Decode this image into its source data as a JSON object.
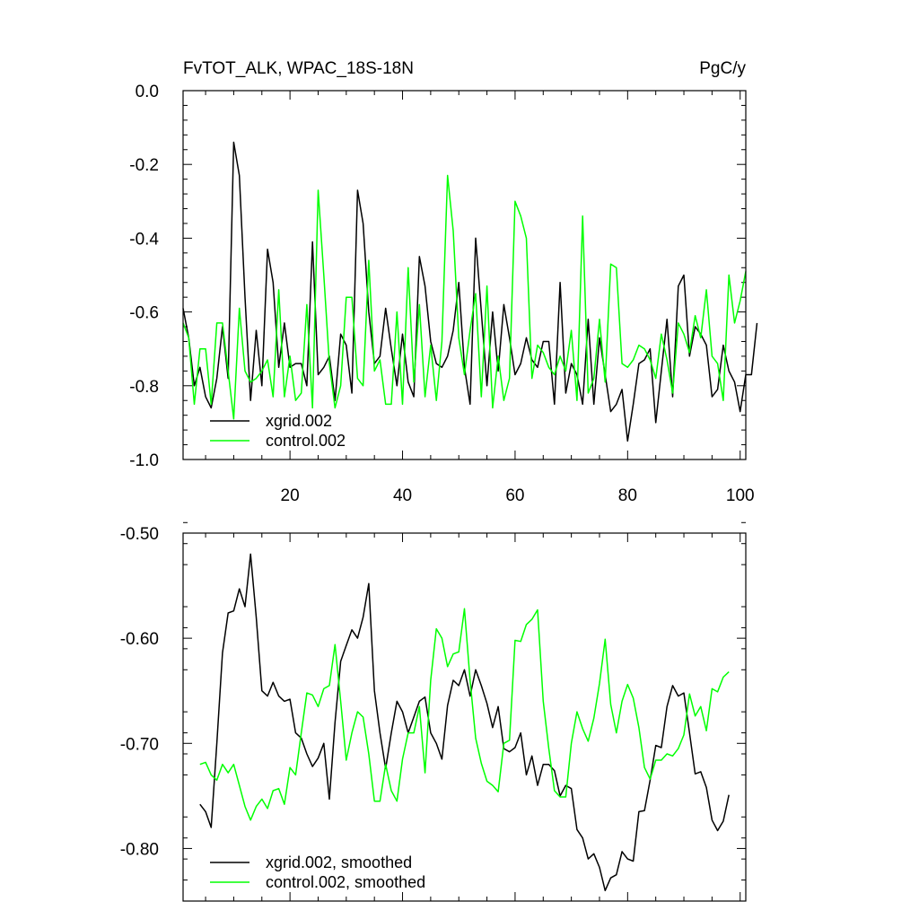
{
  "chart_data": [
    {
      "type": "line",
      "title_left": "FvTOT_ALK, WPAC_18S-18N",
      "title_right": "PgC/y",
      "xlabel": "",
      "ylabel": "",
      "xlim": [
        1,
        101
      ],
      "ylim": [
        -1.0,
        0.0
      ],
      "x_ticks": [
        20,
        40,
        60,
        80,
        100
      ],
      "x_tick_labels": [
        "20",
        "40",
        "60",
        "80",
        "100"
      ],
      "y_ticks": [
        0.0,
        -0.2,
        -0.4,
        -0.6,
        -0.8,
        -1.0
      ],
      "y_tick_labels": [
        "0.0",
        "-0.2",
        "-0.4",
        "-0.6",
        "-0.8",
        "-1.0"
      ],
      "grid": false,
      "legend_position": "bottom-left",
      "x_start": 1,
      "series": [
        {
          "name": "xgrid.002",
          "color": "#000000",
          "values": [
            -0.59,
            -0.67,
            -0.8,
            -0.75,
            -0.83,
            -0.86,
            -0.78,
            -0.64,
            -0.78,
            -0.14,
            -0.23,
            -0.56,
            -0.84,
            -0.65,
            -0.8,
            -0.43,
            -0.52,
            -0.75,
            -0.63,
            -0.75,
            -0.74,
            -0.74,
            -0.8,
            -0.41,
            -0.77,
            -0.75,
            -0.72,
            -0.84,
            -0.66,
            -0.69,
            -0.82,
            -0.27,
            -0.36,
            -0.6,
            -0.74,
            -0.72,
            -0.59,
            -0.7,
            -0.8,
            -0.66,
            -0.79,
            -0.83,
            -0.45,
            -0.53,
            -0.68,
            -0.74,
            -0.75,
            -0.72,
            -0.65,
            -0.52,
            -0.75,
            -0.85,
            -0.4,
            -0.6,
            -0.8,
            -0.6,
            -0.76,
            -0.58,
            -0.67,
            -0.77,
            -0.74,
            -0.67,
            -0.73,
            -0.75,
            -0.68,
            -0.68,
            -0.85,
            -0.52,
            -0.82,
            -0.74,
            -0.77,
            -0.85,
            -0.62,
            -0.85,
            -0.67,
            -0.77,
            -0.87,
            -0.85,
            -0.81,
            -0.95,
            -0.85,
            -0.74,
            -0.73,
            -0.7,
            -0.9,
            -0.76,
            -0.62,
            -0.83,
            -0.53,
            -0.5,
            -0.72,
            -0.64,
            -0.66,
            -0.69,
            -0.83,
            -0.81,
            -0.69,
            -0.76,
            -0.79,
            -0.87,
            -0.77,
            -0.77,
            -0.63
          ]
        },
        {
          "name": "control.002",
          "color": "#00ff00",
          "values": [
            -0.63,
            -0.67,
            -0.85,
            -0.7,
            -0.7,
            -0.85,
            -0.63,
            -0.63,
            -0.76,
            -0.89,
            -0.59,
            -0.76,
            -0.79,
            -0.78,
            -0.76,
            -0.73,
            -0.83,
            -0.54,
            -0.83,
            -0.72,
            -0.84,
            -0.82,
            -0.58,
            -0.86,
            -0.27,
            -0.5,
            -0.74,
            -0.86,
            -0.8,
            -0.56,
            -0.56,
            -0.78,
            -0.8,
            -0.46,
            -0.76,
            -0.73,
            -0.85,
            -0.85,
            -0.6,
            -0.85,
            -0.48,
            -0.79,
            -0.58,
            -0.83,
            -0.69,
            -0.84,
            -0.68,
            -0.23,
            -0.38,
            -0.67,
            -0.77,
            -0.65,
            -0.55,
            -0.83,
            -0.53,
            -0.86,
            -0.72,
            -0.84,
            -0.78,
            -0.3,
            -0.34,
            -0.4,
            -0.78,
            -0.69,
            -0.71,
            -0.75,
            -0.77,
            -0.72,
            -0.76,
            -0.65,
            -0.84,
            -0.34,
            -0.82,
            -0.78,
            -0.62,
            -0.79,
            -0.47,
            -0.48,
            -0.74,
            -0.75,
            -0.73,
            -0.69,
            -0.7,
            -0.73,
            -0.78,
            -0.66,
            -0.73,
            -0.82,
            -0.63,
            -0.66,
            -0.71,
            -0.61,
            -0.67,
            -0.54,
            -0.72,
            -0.74,
            -0.84,
            -0.5,
            -0.63,
            -0.57,
            -0.49
          ]
        }
      ]
    },
    {
      "type": "line",
      "xlabel": "",
      "ylabel": "",
      "xlim": [
        1,
        101
      ],
      "ylim": [
        -0.85,
        -0.5
      ],
      "x_ticks": [
        20,
        40,
        60,
        80,
        100
      ],
      "y_ticks": [
        -0.5,
        -0.6,
        -0.7,
        -0.8
      ],
      "y_tick_labels": [
        "-0.50",
        "-0.60",
        "-0.70",
        "-0.80"
      ],
      "grid": false,
      "legend_position": "bottom-left",
      "x_start": 4,
      "series": [
        {
          "name": "xgrid.002, smoothed",
          "color": "#000000",
          "values": [
            -0.758,
            -0.765,
            -0.78,
            -0.7,
            -0.614,
            -0.576,
            -0.574,
            -0.553,
            -0.57,
            -0.52,
            -0.58,
            -0.65,
            -0.655,
            -0.642,
            -0.655,
            -0.66,
            -0.658,
            -0.69,
            -0.695,
            -0.71,
            -0.722,
            -0.714,
            -0.7,
            -0.753,
            -0.68,
            -0.622,
            -0.607,
            -0.592,
            -0.6,
            -0.58,
            -0.548,
            -0.65,
            -0.69,
            -0.724,
            -0.69,
            -0.66,
            -0.67,
            -0.69,
            -0.675,
            -0.66,
            -0.656,
            -0.69,
            -0.7,
            -0.715,
            -0.664,
            -0.64,
            -0.645,
            -0.63,
            -0.655,
            -0.63,
            -0.645,
            -0.662,
            -0.685,
            -0.665,
            -0.705,
            -0.708,
            -0.704,
            -0.69,
            -0.73,
            -0.712,
            -0.74,
            -0.72,
            -0.72,
            -0.726,
            -0.75,
            -0.74,
            -0.743,
            -0.782,
            -0.79,
            -0.81,
            -0.805,
            -0.818,
            -0.84,
            -0.828,
            -0.825,
            -0.803,
            -0.81,
            -0.812,
            -0.765,
            -0.764,
            -0.735,
            -0.702,
            -0.704,
            -0.665,
            -0.645,
            -0.655,
            -0.652,
            -0.69,
            -0.729,
            -0.727,
            -0.742,
            -0.773,
            -0.783,
            -0.774,
            -0.749
          ]
        },
        {
          "name": "control.002, smoothed",
          "color": "#00ff00",
          "values": [
            -0.72,
            -0.718,
            -0.73,
            -0.735,
            -0.72,
            -0.728,
            -0.72,
            -0.74,
            -0.76,
            -0.773,
            -0.76,
            -0.753,
            -0.762,
            -0.745,
            -0.743,
            -0.758,
            -0.723,
            -0.73,
            -0.69,
            -0.652,
            -0.654,
            -0.665,
            -0.648,
            -0.645,
            -0.606,
            -0.66,
            -0.716,
            -0.69,
            -0.67,
            -0.675,
            -0.71,
            -0.755,
            -0.755,
            -0.72,
            -0.745,
            -0.755,
            -0.715,
            -0.69,
            -0.69,
            -0.665,
            -0.728,
            -0.64,
            -0.591,
            -0.6,
            -0.627,
            -0.615,
            -0.613,
            -0.572,
            -0.64,
            -0.695,
            -0.719,
            -0.736,
            -0.74,
            -0.746,
            -0.7,
            -0.697,
            -0.602,
            -0.603,
            -0.587,
            -0.582,
            -0.573,
            -0.66,
            -0.705,
            -0.745,
            -0.751,
            -0.751,
            -0.7,
            -0.67,
            -0.686,
            -0.698,
            -0.676,
            -0.643,
            -0.601,
            -0.663,
            -0.69,
            -0.66,
            -0.644,
            -0.657,
            -0.685,
            -0.723,
            -0.734,
            -0.716,
            -0.716,
            -0.71,
            -0.712,
            -0.705,
            -0.692,
            -0.653,
            -0.674,
            -0.665,
            -0.688,
            -0.648,
            -0.651,
            -0.637,
            -0.632
          ]
        }
      ]
    }
  ]
}
